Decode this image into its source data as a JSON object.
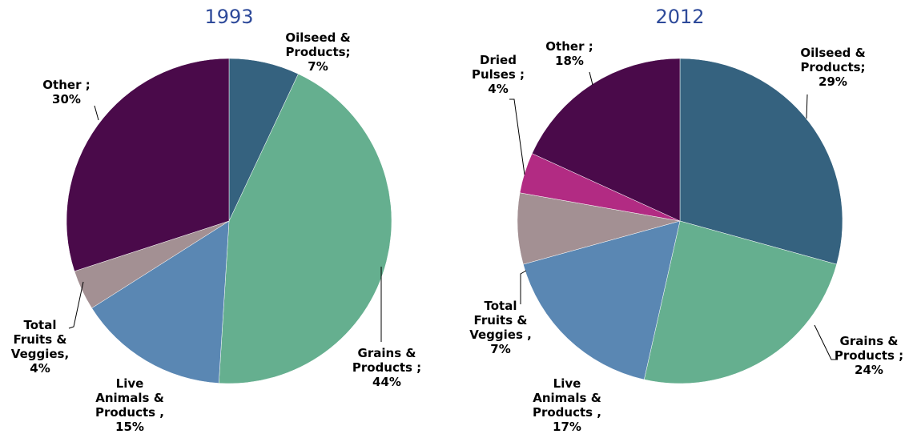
{
  "chart_data": [
    {
      "type": "pie",
      "title": "1993",
      "categories": [
        "Oilseed & Products;",
        "Grains & Products ;",
        "Live Animals & Products ,",
        "Total Fruits & Veggies,",
        "Other ;"
      ],
      "values": [
        7,
        44,
        15,
        4,
        30
      ],
      "value_labels": [
        "7%",
        "44%",
        "15%",
        "4%",
        "30%"
      ],
      "colors": [
        "#35627f",
        "#65af8f",
        "#5a87b3",
        "#a39093",
        "#4a0a4a"
      ]
    },
    {
      "type": "pie",
      "title": "2012",
      "categories": [
        "Oilseed & Products;",
        "Grains & Products ;",
        "Live Animals & Products ,",
        "Total Fruits & Veggies ,",
        "Dried Pulses ;",
        "Other ;"
      ],
      "values": [
        29,
        24,
        17,
        7,
        4,
        18
      ],
      "value_labels": [
        "29%",
        "24%",
        "17%",
        "7%",
        "4%",
        "18%"
      ],
      "colors": [
        "#35627f",
        "#65af8f",
        "#5a87b3",
        "#a39093",
        "#b22b83",
        "#4a0a4a"
      ]
    }
  ]
}
